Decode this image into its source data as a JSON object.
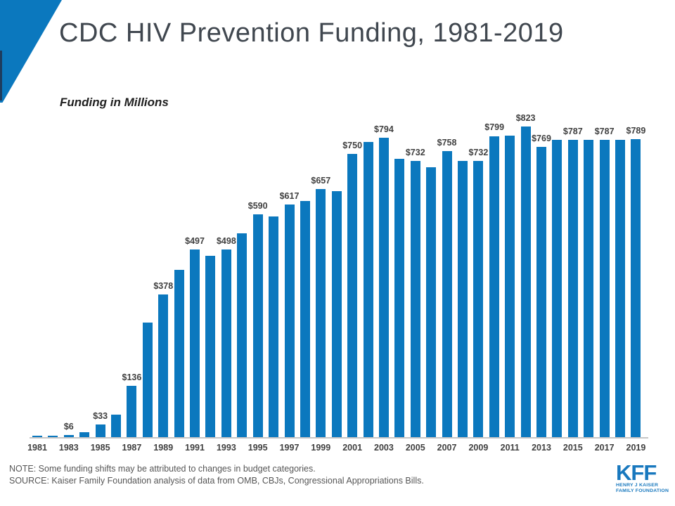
{
  "slide": {
    "title": "CDC HIV Prevention Funding, 1981-2019",
    "subtitle": "Funding in Millions",
    "note": "NOTE: Some funding shifts may be attributed to changes in budget categories.",
    "source": "SOURCE: Kaiser Family Foundation analysis of data from OMB, CBJs, Congressional Appropriations Bills."
  },
  "logo": {
    "text": "KFF",
    "subtext_line1": "HENRY J KAISER",
    "subtext_line2": "FAMILY FOUNDATION"
  },
  "colors": {
    "bar": "#0B78BE",
    "accent_triangle": "#0B78BE",
    "accent_navy": "#1E3C5E",
    "title_text": "#40474F",
    "label_text": "#404040",
    "note_text": "#565656",
    "axis_line": "#C6C6C6",
    "kff_blue": "#1878BE"
  },
  "chart_data": {
    "type": "bar",
    "title": "CDC HIV Prevention Funding, 1981-2019",
    "ylabel": "Funding in Millions ($)",
    "x": [
      1981,
      1982,
      1983,
      1984,
      1985,
      1986,
      1987,
      1988,
      1989,
      1990,
      1991,
      1992,
      1993,
      1994,
      1995,
      1996,
      1997,
      1998,
      1999,
      2000,
      2001,
      2002,
      2003,
      2004,
      2005,
      2006,
      2007,
      2008,
      2009,
      2010,
      2011,
      2012,
      2013,
      2014,
      2015,
      2016,
      2017,
      2018,
      2019
    ],
    "values": [
      2,
      3,
      6,
      13,
      33,
      60,
      136,
      304,
      378,
      443,
      497,
      481,
      498,
      540,
      590,
      584,
      617,
      625,
      657,
      652,
      750,
      783,
      794,
      737,
      732,
      716,
      758,
      732,
      732,
      797,
      799,
      823,
      769,
      787,
      787,
      787,
      787,
      788,
      789
    ],
    "labeled_years": [
      1983,
      1985,
      1987,
      1989,
      1991,
      1993,
      1995,
      1997,
      1999,
      2001,
      2003,
      2005,
      2007,
      2009,
      2011,
      2012,
      2013,
      2015,
      2017,
      2019
    ],
    "value_label_prefix": "$",
    "xtick_years": [
      1981,
      1983,
      1985,
      1987,
      1989,
      1991,
      1993,
      1995,
      1997,
      1999,
      2001,
      2003,
      2005,
      2007,
      2009,
      2011,
      2013,
      2015,
      2017,
      2019
    ],
    "ylim": [
      0,
      860
    ],
    "grid": false,
    "legend": false,
    "bar_color": "#0B78BE"
  }
}
